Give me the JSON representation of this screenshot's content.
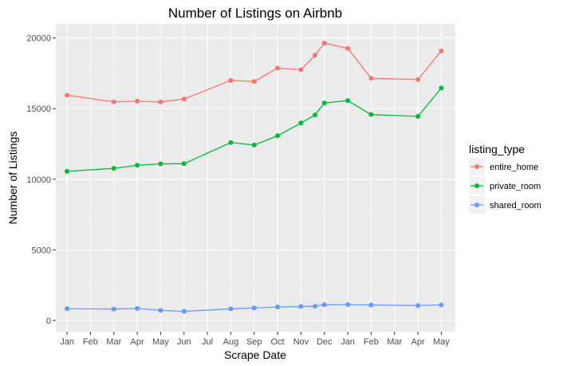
{
  "chart_data": {
    "type": "line",
    "title": "Number of Listings on Airbnb",
    "xlabel": "Scrape Date",
    "ylabel": "Number of Listings",
    "ylim": [
      -800,
      21000
    ],
    "y_ticks": [
      0,
      5000,
      10000,
      15000,
      20000
    ],
    "x_ticks": [
      "Jan",
      "Feb",
      "Mar",
      "Apr",
      "May",
      "Jun",
      "Jul",
      "Aug",
      "Sep",
      "Oct",
      "Nov",
      "Dec",
      "Jan",
      "Feb",
      "Mar",
      "Apr",
      "May"
    ],
    "x_ticks_months": [
      0,
      1,
      2,
      3,
      4,
      5,
      6,
      7,
      8,
      9,
      10,
      11,
      12,
      13,
      14,
      15,
      16
    ],
    "xlim_months": [
      -0.48,
      16.6
    ],
    "x_months": [
      0,
      2,
      3,
      4,
      5,
      7,
      8,
      9,
      10,
      10.6,
      11,
      12,
      13,
      15,
      16
    ],
    "grid": true,
    "legend_title": "listing_type",
    "legend_position": "right",
    "series": [
      {
        "name": "entire_home",
        "color": "#F8766D",
        "values": [
          15950,
          15480,
          15530,
          15470,
          15680,
          17000,
          16920,
          17870,
          17760,
          18780,
          19640,
          19270,
          17150,
          17060,
          19090
        ]
      },
      {
        "name": "private_room",
        "color": "#00BA38",
        "values": [
          10560,
          10770,
          10990,
          11090,
          11100,
          12600,
          12420,
          13080,
          13980,
          14550,
          15400,
          15570,
          14580,
          14450,
          16460
        ]
      },
      {
        "name": "shared_room",
        "color": "#619CFF",
        "values": [
          830,
          800,
          850,
          710,
          640,
          820,
          880,
          950,
          990,
          1010,
          1110,
          1120,
          1090,
          1050,
          1100
        ]
      }
    ]
  }
}
